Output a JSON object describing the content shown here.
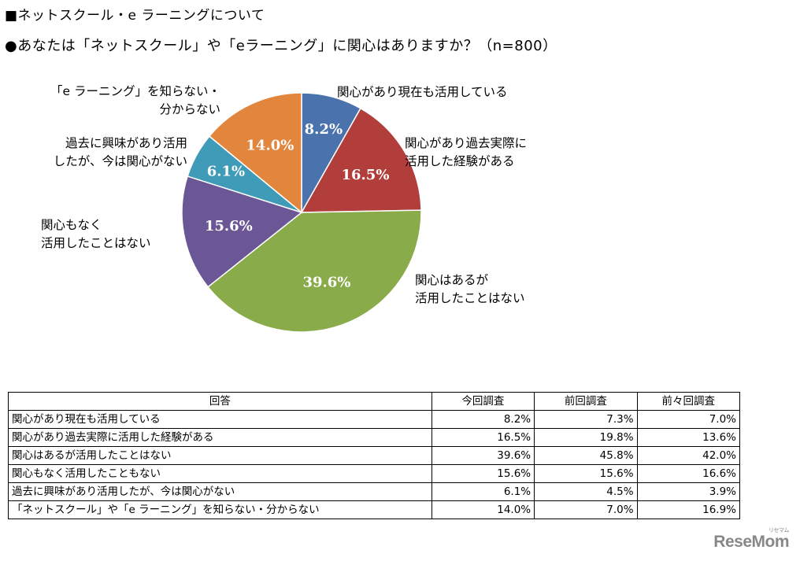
{
  "heading": "■ネットスクール・e ラーニングについて",
  "question": "●あなたは「ネットスクール」や「eラーニング」に関心はありますか？（n=800）",
  "chart_data": {
    "type": "pie",
    "slices": [
      {
        "label": [
          "関心があり現在も活用している"
        ],
        "value": 8.2,
        "text": "8.2%",
        "color": "#4a72ad"
      },
      {
        "label": [
          "関心があり過去実際に",
          "活用した経験がある"
        ],
        "value": 16.5,
        "text": "16.5%",
        "color": "#b13e3b"
      },
      {
        "label": [
          "関心はあるが",
          "活用したことはない"
        ],
        "value": 39.6,
        "text": "39.6%",
        "color": "#8aab4a"
      },
      {
        "label": [
          "関心もなく",
          "活用したことはない"
        ],
        "value": 15.6,
        "text": "15.6%",
        "color": "#6b5796"
      },
      {
        "label": [
          "過去に興味があり活用",
          "したが、今は関心がない"
        ],
        "value": 6.1,
        "text": "6.1%",
        "color": "#3f9bb8"
      },
      {
        "label": [
          "「e ラーニング」を知らない・",
          "分からない"
        ],
        "value": 14.0,
        "text": "14.0%",
        "color": "#e2853d"
      }
    ]
  },
  "table": {
    "headers": [
      "回答",
      "今回調査",
      "前回調査",
      "前々回調査"
    ],
    "rows": [
      [
        "関心があり現在も活用している",
        "8.2%",
        "7.3%",
        "7.0%"
      ],
      [
        "関心があり過去実際に活用した経験がある",
        "16.5%",
        "19.8%",
        "13.6%"
      ],
      [
        "関心はあるが活用したことはない",
        "39.6%",
        "45.8%",
        "42.0%"
      ],
      [
        "関心もなく活用したこともない",
        "15.6%",
        "15.6%",
        "16.6%"
      ],
      [
        "過去に興味があり活用したが、今は関心がない",
        "6.1%",
        "4.5%",
        "3.9%"
      ],
      [
        "「ネットスクール」や「e ラーニング」を知らない・分からない",
        "14.0%",
        "7.0%",
        "16.9%"
      ]
    ]
  },
  "logo": {
    "text": "ReseMom",
    "sub": "リセマム"
  }
}
